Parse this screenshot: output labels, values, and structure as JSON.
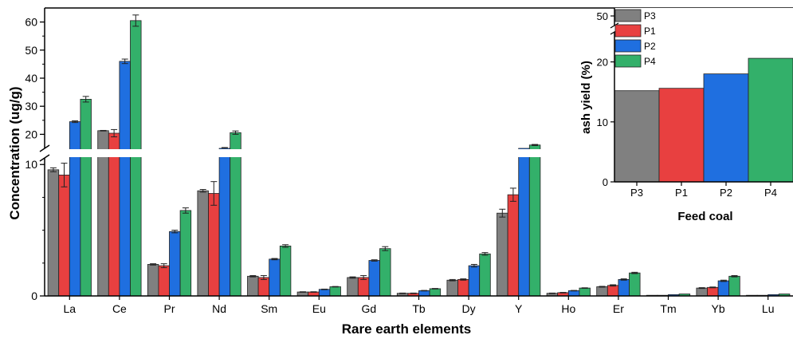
{
  "chart_data": [
    {
      "type": "bar",
      "xlabel": "Rare earth elements",
      "ylabel": "Concentration (ug/g)",
      "categories": [
        "La",
        "Ce",
        "Pr",
        "Nd",
        "Sm",
        "Eu",
        "Gd",
        "Tb",
        "Dy",
        "Y",
        "Ho",
        "Er",
        "Tm",
        "Yb",
        "Lu"
      ],
      "y_axis_break": {
        "lower_range": [
          0,
          10.5
        ],
        "upper_range": [
          15,
          65
        ]
      },
      "yticks_lower": [
        0,
        10
      ],
      "yticks_upper": [
        20,
        30,
        40,
        50,
        60
      ],
      "series": [
        {
          "name": "P3",
          "color": "#808080",
          "values": [
            9.6,
            21.3,
            2.4,
            8.0,
            1.5,
            0.3,
            1.4,
            0.2,
            1.2,
            6.3,
            0.2,
            0.7,
            0.05,
            0.6,
            0.05
          ],
          "errors": [
            0.15,
            0.1,
            0.05,
            0.1,
            0.05,
            0.02,
            0.05,
            0.02,
            0.05,
            0.3,
            0.02,
            0.03,
            0.01,
            0.03,
            0.01
          ]
        },
        {
          "name": "P1",
          "color": "#e84040",
          "values": [
            9.2,
            20.4,
            2.3,
            7.8,
            1.4,
            0.3,
            1.4,
            0.2,
            1.25,
            7.7,
            0.25,
            0.8,
            0.05,
            0.65,
            0.05
          ],
          "errors": [
            0.9,
            1.3,
            0.15,
            0.9,
            0.15,
            0.02,
            0.15,
            0.02,
            0.05,
            0.5,
            0.02,
            0.05,
            0.01,
            0.03,
            0.01
          ]
        },
        {
          "name": "P2",
          "color": "#1f6fe0",
          "values": [
            24.5,
            46.0,
            4.9,
            14.8,
            2.8,
            0.5,
            2.7,
            0.4,
            2.3,
            11.9,
            0.4,
            1.25,
            0.1,
            1.15,
            0.1
          ],
          "errors": [
            0.3,
            0.8,
            0.1,
            0.5,
            0.05,
            0.02,
            0.05,
            0.02,
            0.1,
            0.1,
            0.02,
            0.05,
            0.01,
            0.05,
            0.01
          ]
        },
        {
          "name": "P4",
          "color": "#33b06a",
          "values": [
            32.5,
            60.5,
            6.5,
            20.6,
            3.8,
            0.7,
            3.6,
            0.55,
            3.2,
            16.2,
            0.6,
            1.75,
            0.15,
            1.5,
            0.15
          ],
          "errors": [
            1.0,
            2.0,
            0.2,
            0.6,
            0.1,
            0.02,
            0.15,
            0.02,
            0.1,
            0.2,
            0.02,
            0.05,
            0.01,
            0.05,
            0.01
          ]
        }
      ]
    },
    {
      "type": "bar",
      "xlabel": "Feed coal",
      "ylabel": "ash yield (%)",
      "categories": [
        "P3",
        "P1",
        "P2",
        "P4"
      ],
      "values": [
        15.2,
        15.6,
        18.0,
        20.6
      ],
      "colors": [
        "#808080",
        "#e84040",
        "#1f6fe0",
        "#33b06a"
      ],
      "yticks": [
        0,
        10,
        20,
        50
      ]
    }
  ]
}
